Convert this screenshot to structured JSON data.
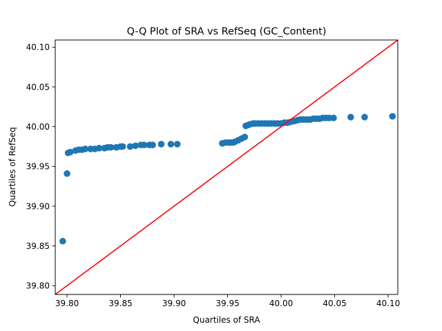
{
  "chart_data": {
    "type": "scatter",
    "title": "Q-Q Plot of SRA vs RefSeq (GC_Content)",
    "xlabel": "Quartiles of SRA",
    "ylabel": "Quartiles of RefSeq",
    "xlim": [
      39.789,
      40.109
    ],
    "ylim": [
      39.789,
      40.109
    ],
    "xticks": [
      "39.80",
      "39.85",
      "39.90",
      "39.95",
      "40.00",
      "40.05",
      "40.10"
    ],
    "yticks": [
      "39.80",
      "39.85",
      "39.90",
      "39.95",
      "40.00",
      "40.05",
      "40.10"
    ],
    "grid": false,
    "point_color": "#1f77b4",
    "reference_line": {
      "color": "#ff0000",
      "from": [
        39.789,
        39.789
      ],
      "to": [
        40.109,
        40.109
      ]
    },
    "points": [
      [
        39.796,
        39.856
      ],
      [
        39.8,
        39.941
      ],
      [
        39.801,
        39.967
      ],
      [
        39.803,
        39.968
      ],
      [
        39.808,
        39.97
      ],
      [
        39.811,
        39.971
      ],
      [
        39.814,
        39.971
      ],
      [
        39.817,
        39.972
      ],
      [
        39.822,
        39.972
      ],
      [
        39.826,
        39.972
      ],
      [
        39.83,
        39.973
      ],
      [
        39.835,
        39.973
      ],
      [
        39.838,
        39.974
      ],
      [
        39.841,
        39.974
      ],
      [
        39.846,
        39.974
      ],
      [
        39.85,
        39.975
      ],
      [
        39.852,
        39.975
      ],
      [
        39.859,
        39.975
      ],
      [
        39.864,
        39.976
      ],
      [
        39.869,
        39.977
      ],
      [
        39.872,
        39.977
      ],
      [
        39.877,
        39.977
      ],
      [
        39.88,
        39.977
      ],
      [
        39.888,
        39.978
      ],
      [
        39.897,
        39.978
      ],
      [
        39.903,
        39.978
      ],
      [
        39.945,
        39.979
      ],
      [
        39.948,
        39.98
      ],
      [
        39.951,
        39.98
      ],
      [
        39.953,
        39.98
      ],
      [
        39.955,
        39.98
      ],
      [
        39.957,
        39.981
      ],
      [
        39.96,
        39.983
      ],
      [
        39.963,
        39.985
      ],
      [
        39.966,
        39.987
      ],
      [
        39.967,
        40.001
      ],
      [
        39.969,
        40.002
      ],
      [
        39.971,
        40.003
      ],
      [
        39.974,
        40.004
      ],
      [
        39.976,
        40.004
      ],
      [
        39.979,
        40.004
      ],
      [
        39.982,
        40.004
      ],
      [
        39.985,
        40.004
      ],
      [
        39.988,
        40.004
      ],
      [
        39.991,
        40.004
      ],
      [
        39.994,
        40.004
      ],
      [
        39.997,
        40.004
      ],
      [
        40.0,
        40.004
      ],
      [
        40.003,
        40.005
      ],
      [
        40.006,
        40.005
      ],
      [
        40.009,
        40.006
      ],
      [
        40.012,
        40.007
      ],
      [
        40.015,
        40.008
      ],
      [
        40.018,
        40.009
      ],
      [
        40.021,
        40.009
      ],
      [
        40.024,
        40.009
      ],
      [
        40.027,
        40.009
      ],
      [
        40.03,
        40.01
      ],
      [
        40.033,
        40.01
      ],
      [
        40.036,
        40.01
      ],
      [
        40.039,
        40.011
      ],
      [
        40.042,
        40.011
      ],
      [
        40.045,
        40.011
      ],
      [
        40.049,
        40.011
      ],
      [
        40.065,
        40.012
      ],
      [
        40.078,
        40.012
      ],
      [
        40.104,
        40.013
      ]
    ]
  }
}
